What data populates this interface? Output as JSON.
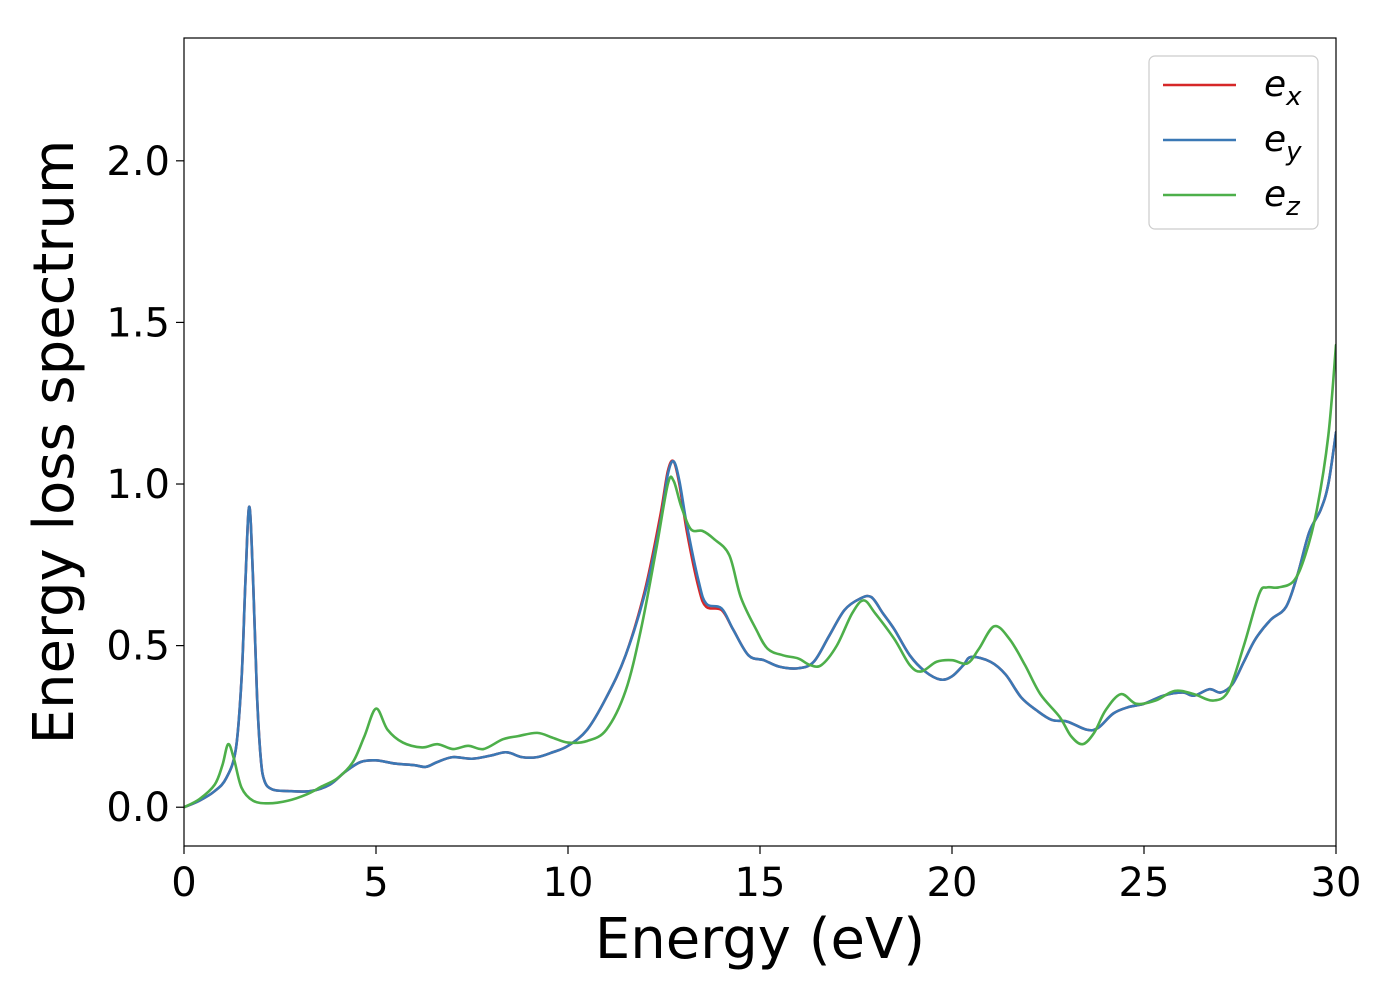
{
  "chart_data": {
    "type": "line",
    "title": "",
    "xlabel": "Energy (eV)",
    "ylabel": "Energy loss spectrum",
    "xlim": [
      0,
      30
    ],
    "ylim": [
      -0.12,
      2.38
    ],
    "xticks": [
      0,
      5,
      10,
      15,
      20,
      25,
      30
    ],
    "xtick_labels": [
      "0",
      "5",
      "10",
      "15",
      "20",
      "25",
      "30"
    ],
    "yticks": [
      0.0,
      0.5,
      1.0,
      1.5,
      2.0
    ],
    "ytick_labels": [
      "0.0",
      "0.5",
      "1.0",
      "1.5",
      "2.0"
    ],
    "grid": false,
    "legend_position": "top-right",
    "series": [
      {
        "name": "e",
        "subscript": "x",
        "color": "#d62728",
        "points": [
          [
            0,
            0
          ],
          [
            0.4,
            0.02
          ],
          [
            0.8,
            0.05
          ],
          [
            1.1,
            0.09
          ],
          [
            1.35,
            0.18
          ],
          [
            1.5,
            0.4
          ],
          [
            1.6,
            0.7
          ],
          [
            1.7,
            0.93
          ],
          [
            1.8,
            0.7
          ],
          [
            1.9,
            0.35
          ],
          [
            2.0,
            0.15
          ],
          [
            2.1,
            0.08
          ],
          [
            2.3,
            0.055
          ],
          [
            2.7,
            0.05
          ],
          [
            3.3,
            0.05
          ],
          [
            3.8,
            0.07
          ],
          [
            4.2,
            0.11
          ],
          [
            4.6,
            0.14
          ],
          [
            5.0,
            0.145
          ],
          [
            5.5,
            0.135
          ],
          [
            6.0,
            0.13
          ],
          [
            6.3,
            0.125
          ],
          [
            6.6,
            0.14
          ],
          [
            7.0,
            0.155
          ],
          [
            7.5,
            0.15
          ],
          [
            8.0,
            0.16
          ],
          [
            8.4,
            0.17
          ],
          [
            8.8,
            0.155
          ],
          [
            9.2,
            0.155
          ],
          [
            9.6,
            0.17
          ],
          [
            10.0,
            0.19
          ],
          [
            10.5,
            0.24
          ],
          [
            11.0,
            0.34
          ],
          [
            11.5,
            0.47
          ],
          [
            12.0,
            0.67
          ],
          [
            12.4,
            0.9
          ],
          [
            12.6,
            1.04
          ],
          [
            12.75,
            1.07
          ],
          [
            12.9,
            1.0
          ],
          [
            13.1,
            0.85
          ],
          [
            13.4,
            0.68
          ],
          [
            13.6,
            0.62
          ],
          [
            14.0,
            0.61
          ],
          [
            14.3,
            0.55
          ],
          [
            14.7,
            0.47
          ],
          [
            15.1,
            0.455
          ],
          [
            15.5,
            0.435
          ],
          [
            16.0,
            0.43
          ],
          [
            16.4,
            0.45
          ],
          [
            16.8,
            0.53
          ],
          [
            17.2,
            0.61
          ],
          [
            17.6,
            0.645
          ],
          [
            17.9,
            0.65
          ],
          [
            18.2,
            0.6
          ],
          [
            18.5,
            0.55
          ],
          [
            18.9,
            0.47
          ],
          [
            19.3,
            0.42
          ],
          [
            19.7,
            0.395
          ],
          [
            20.0,
            0.405
          ],
          [
            20.3,
            0.44
          ],
          [
            20.5,
            0.465
          ],
          [
            21.0,
            0.45
          ],
          [
            21.4,
            0.41
          ],
          [
            21.8,
            0.34
          ],
          [
            22.2,
            0.3
          ],
          [
            22.6,
            0.27
          ],
          [
            23.0,
            0.265
          ],
          [
            23.5,
            0.24
          ],
          [
            23.8,
            0.245
          ],
          [
            24.2,
            0.29
          ],
          [
            24.6,
            0.31
          ],
          [
            25.0,
            0.32
          ],
          [
            25.5,
            0.345
          ],
          [
            26.0,
            0.355
          ],
          [
            26.3,
            0.345
          ],
          [
            26.7,
            0.365
          ],
          [
            27.0,
            0.355
          ],
          [
            27.3,
            0.38
          ],
          [
            27.6,
            0.45
          ],
          [
            27.9,
            0.52
          ],
          [
            28.3,
            0.58
          ],
          [
            28.7,
            0.62
          ],
          [
            29.0,
            0.72
          ],
          [
            29.3,
            0.85
          ],
          [
            29.6,
            0.92
          ],
          [
            29.8,
            1.0
          ],
          [
            30.0,
            1.16
          ]
        ]
      },
      {
        "name": "e",
        "subscript": "y",
        "color": "#3a78b5",
        "points": [
          [
            0,
            0
          ],
          [
            0.4,
            0.02
          ],
          [
            0.8,
            0.05
          ],
          [
            1.1,
            0.09
          ],
          [
            1.35,
            0.18
          ],
          [
            1.5,
            0.4
          ],
          [
            1.6,
            0.7
          ],
          [
            1.7,
            0.93
          ],
          [
            1.8,
            0.7
          ],
          [
            1.9,
            0.35
          ],
          [
            2.0,
            0.15
          ],
          [
            2.1,
            0.08
          ],
          [
            2.3,
            0.055
          ],
          [
            2.7,
            0.05
          ],
          [
            3.3,
            0.05
          ],
          [
            3.8,
            0.07
          ],
          [
            4.2,
            0.11
          ],
          [
            4.6,
            0.14
          ],
          [
            5.0,
            0.145
          ],
          [
            5.5,
            0.135
          ],
          [
            6.0,
            0.13
          ],
          [
            6.3,
            0.125
          ],
          [
            6.6,
            0.14
          ],
          [
            7.0,
            0.155
          ],
          [
            7.5,
            0.15
          ],
          [
            8.0,
            0.16
          ],
          [
            8.4,
            0.17
          ],
          [
            8.8,
            0.155
          ],
          [
            9.2,
            0.155
          ],
          [
            9.6,
            0.17
          ],
          [
            10.0,
            0.19
          ],
          [
            10.5,
            0.24
          ],
          [
            11.0,
            0.34
          ],
          [
            11.5,
            0.47
          ],
          [
            12.0,
            0.66
          ],
          [
            12.4,
            0.88
          ],
          [
            12.6,
            1.03
          ],
          [
            12.75,
            1.07
          ],
          [
            12.9,
            1.01
          ],
          [
            13.1,
            0.87
          ],
          [
            13.4,
            0.7
          ],
          [
            13.6,
            0.63
          ],
          [
            14.0,
            0.615
          ],
          [
            14.3,
            0.55
          ],
          [
            14.7,
            0.47
          ],
          [
            15.1,
            0.455
          ],
          [
            15.5,
            0.435
          ],
          [
            16.0,
            0.43
          ],
          [
            16.4,
            0.45
          ],
          [
            16.8,
            0.53
          ],
          [
            17.2,
            0.61
          ],
          [
            17.6,
            0.645
          ],
          [
            17.9,
            0.65
          ],
          [
            18.2,
            0.6
          ],
          [
            18.5,
            0.55
          ],
          [
            18.9,
            0.47
          ],
          [
            19.3,
            0.42
          ],
          [
            19.7,
            0.395
          ],
          [
            20.0,
            0.405
          ],
          [
            20.3,
            0.44
          ],
          [
            20.5,
            0.465
          ],
          [
            21.0,
            0.45
          ],
          [
            21.4,
            0.41
          ],
          [
            21.8,
            0.34
          ],
          [
            22.2,
            0.3
          ],
          [
            22.6,
            0.27
          ],
          [
            23.0,
            0.265
          ],
          [
            23.5,
            0.24
          ],
          [
            23.8,
            0.245
          ],
          [
            24.2,
            0.29
          ],
          [
            24.6,
            0.31
          ],
          [
            25.0,
            0.32
          ],
          [
            25.5,
            0.345
          ],
          [
            26.0,
            0.355
          ],
          [
            26.3,
            0.345
          ],
          [
            26.7,
            0.365
          ],
          [
            27.0,
            0.355
          ],
          [
            27.3,
            0.38
          ],
          [
            27.6,
            0.45
          ],
          [
            27.9,
            0.52
          ],
          [
            28.3,
            0.58
          ],
          [
            28.7,
            0.62
          ],
          [
            29.0,
            0.72
          ],
          [
            29.3,
            0.85
          ],
          [
            29.6,
            0.92
          ],
          [
            29.8,
            1.0
          ],
          [
            30.0,
            1.16
          ]
        ]
      },
      {
        "name": "e",
        "subscript": "z",
        "color": "#4daf4a",
        "points": [
          [
            0,
            0
          ],
          [
            0.4,
            0.025
          ],
          [
            0.8,
            0.07
          ],
          [
            1.0,
            0.13
          ],
          [
            1.15,
            0.195
          ],
          [
            1.3,
            0.15
          ],
          [
            1.5,
            0.06
          ],
          [
            1.8,
            0.02
          ],
          [
            2.2,
            0.012
          ],
          [
            2.7,
            0.02
          ],
          [
            3.2,
            0.04
          ],
          [
            3.6,
            0.065
          ],
          [
            4.0,
            0.09
          ],
          [
            4.4,
            0.14
          ],
          [
            4.7,
            0.22
          ],
          [
            5.0,
            0.305
          ],
          [
            5.3,
            0.24
          ],
          [
            5.7,
            0.2
          ],
          [
            6.2,
            0.185
          ],
          [
            6.6,
            0.195
          ],
          [
            7.0,
            0.18
          ],
          [
            7.4,
            0.19
          ],
          [
            7.8,
            0.18
          ],
          [
            8.3,
            0.21
          ],
          [
            8.7,
            0.22
          ],
          [
            9.2,
            0.23
          ],
          [
            9.6,
            0.215
          ],
          [
            10.0,
            0.2
          ],
          [
            10.5,
            0.205
          ],
          [
            11.0,
            0.24
          ],
          [
            11.5,
            0.36
          ],
          [
            11.9,
            0.55
          ],
          [
            12.3,
            0.8
          ],
          [
            12.6,
            1.0
          ],
          [
            12.75,
            1.01
          ],
          [
            12.95,
            0.93
          ],
          [
            13.2,
            0.86
          ],
          [
            13.5,
            0.855
          ],
          [
            13.8,
            0.83
          ],
          [
            14.2,
            0.78
          ],
          [
            14.5,
            0.65
          ],
          [
            14.9,
            0.55
          ],
          [
            15.2,
            0.49
          ],
          [
            15.6,
            0.47
          ],
          [
            16.0,
            0.46
          ],
          [
            16.3,
            0.44
          ],
          [
            16.6,
            0.44
          ],
          [
            17.0,
            0.5
          ],
          [
            17.4,
            0.6
          ],
          [
            17.7,
            0.64
          ],
          [
            18.0,
            0.6
          ],
          [
            18.5,
            0.52
          ],
          [
            18.9,
            0.44
          ],
          [
            19.2,
            0.42
          ],
          [
            19.6,
            0.45
          ],
          [
            20.0,
            0.455
          ],
          [
            20.4,
            0.445
          ],
          [
            20.7,
            0.49
          ],
          [
            21.1,
            0.56
          ],
          [
            21.5,
            0.52
          ],
          [
            21.9,
            0.44
          ],
          [
            22.3,
            0.35
          ],
          [
            22.8,
            0.28
          ],
          [
            23.1,
            0.22
          ],
          [
            23.4,
            0.195
          ],
          [
            23.7,
            0.23
          ],
          [
            24.0,
            0.3
          ],
          [
            24.4,
            0.35
          ],
          [
            24.8,
            0.32
          ],
          [
            25.3,
            0.33
          ],
          [
            25.8,
            0.36
          ],
          [
            26.3,
            0.35
          ],
          [
            26.8,
            0.33
          ],
          [
            27.2,
            0.36
          ],
          [
            27.6,
            0.5
          ],
          [
            28.0,
            0.66
          ],
          [
            28.2,
            0.68
          ],
          [
            28.5,
            0.68
          ],
          [
            28.9,
            0.7
          ],
          [
            29.2,
            0.78
          ],
          [
            29.5,
            0.92
          ],
          [
            29.8,
            1.15
          ],
          [
            30.0,
            1.43
          ]
        ]
      }
    ]
  }
}
